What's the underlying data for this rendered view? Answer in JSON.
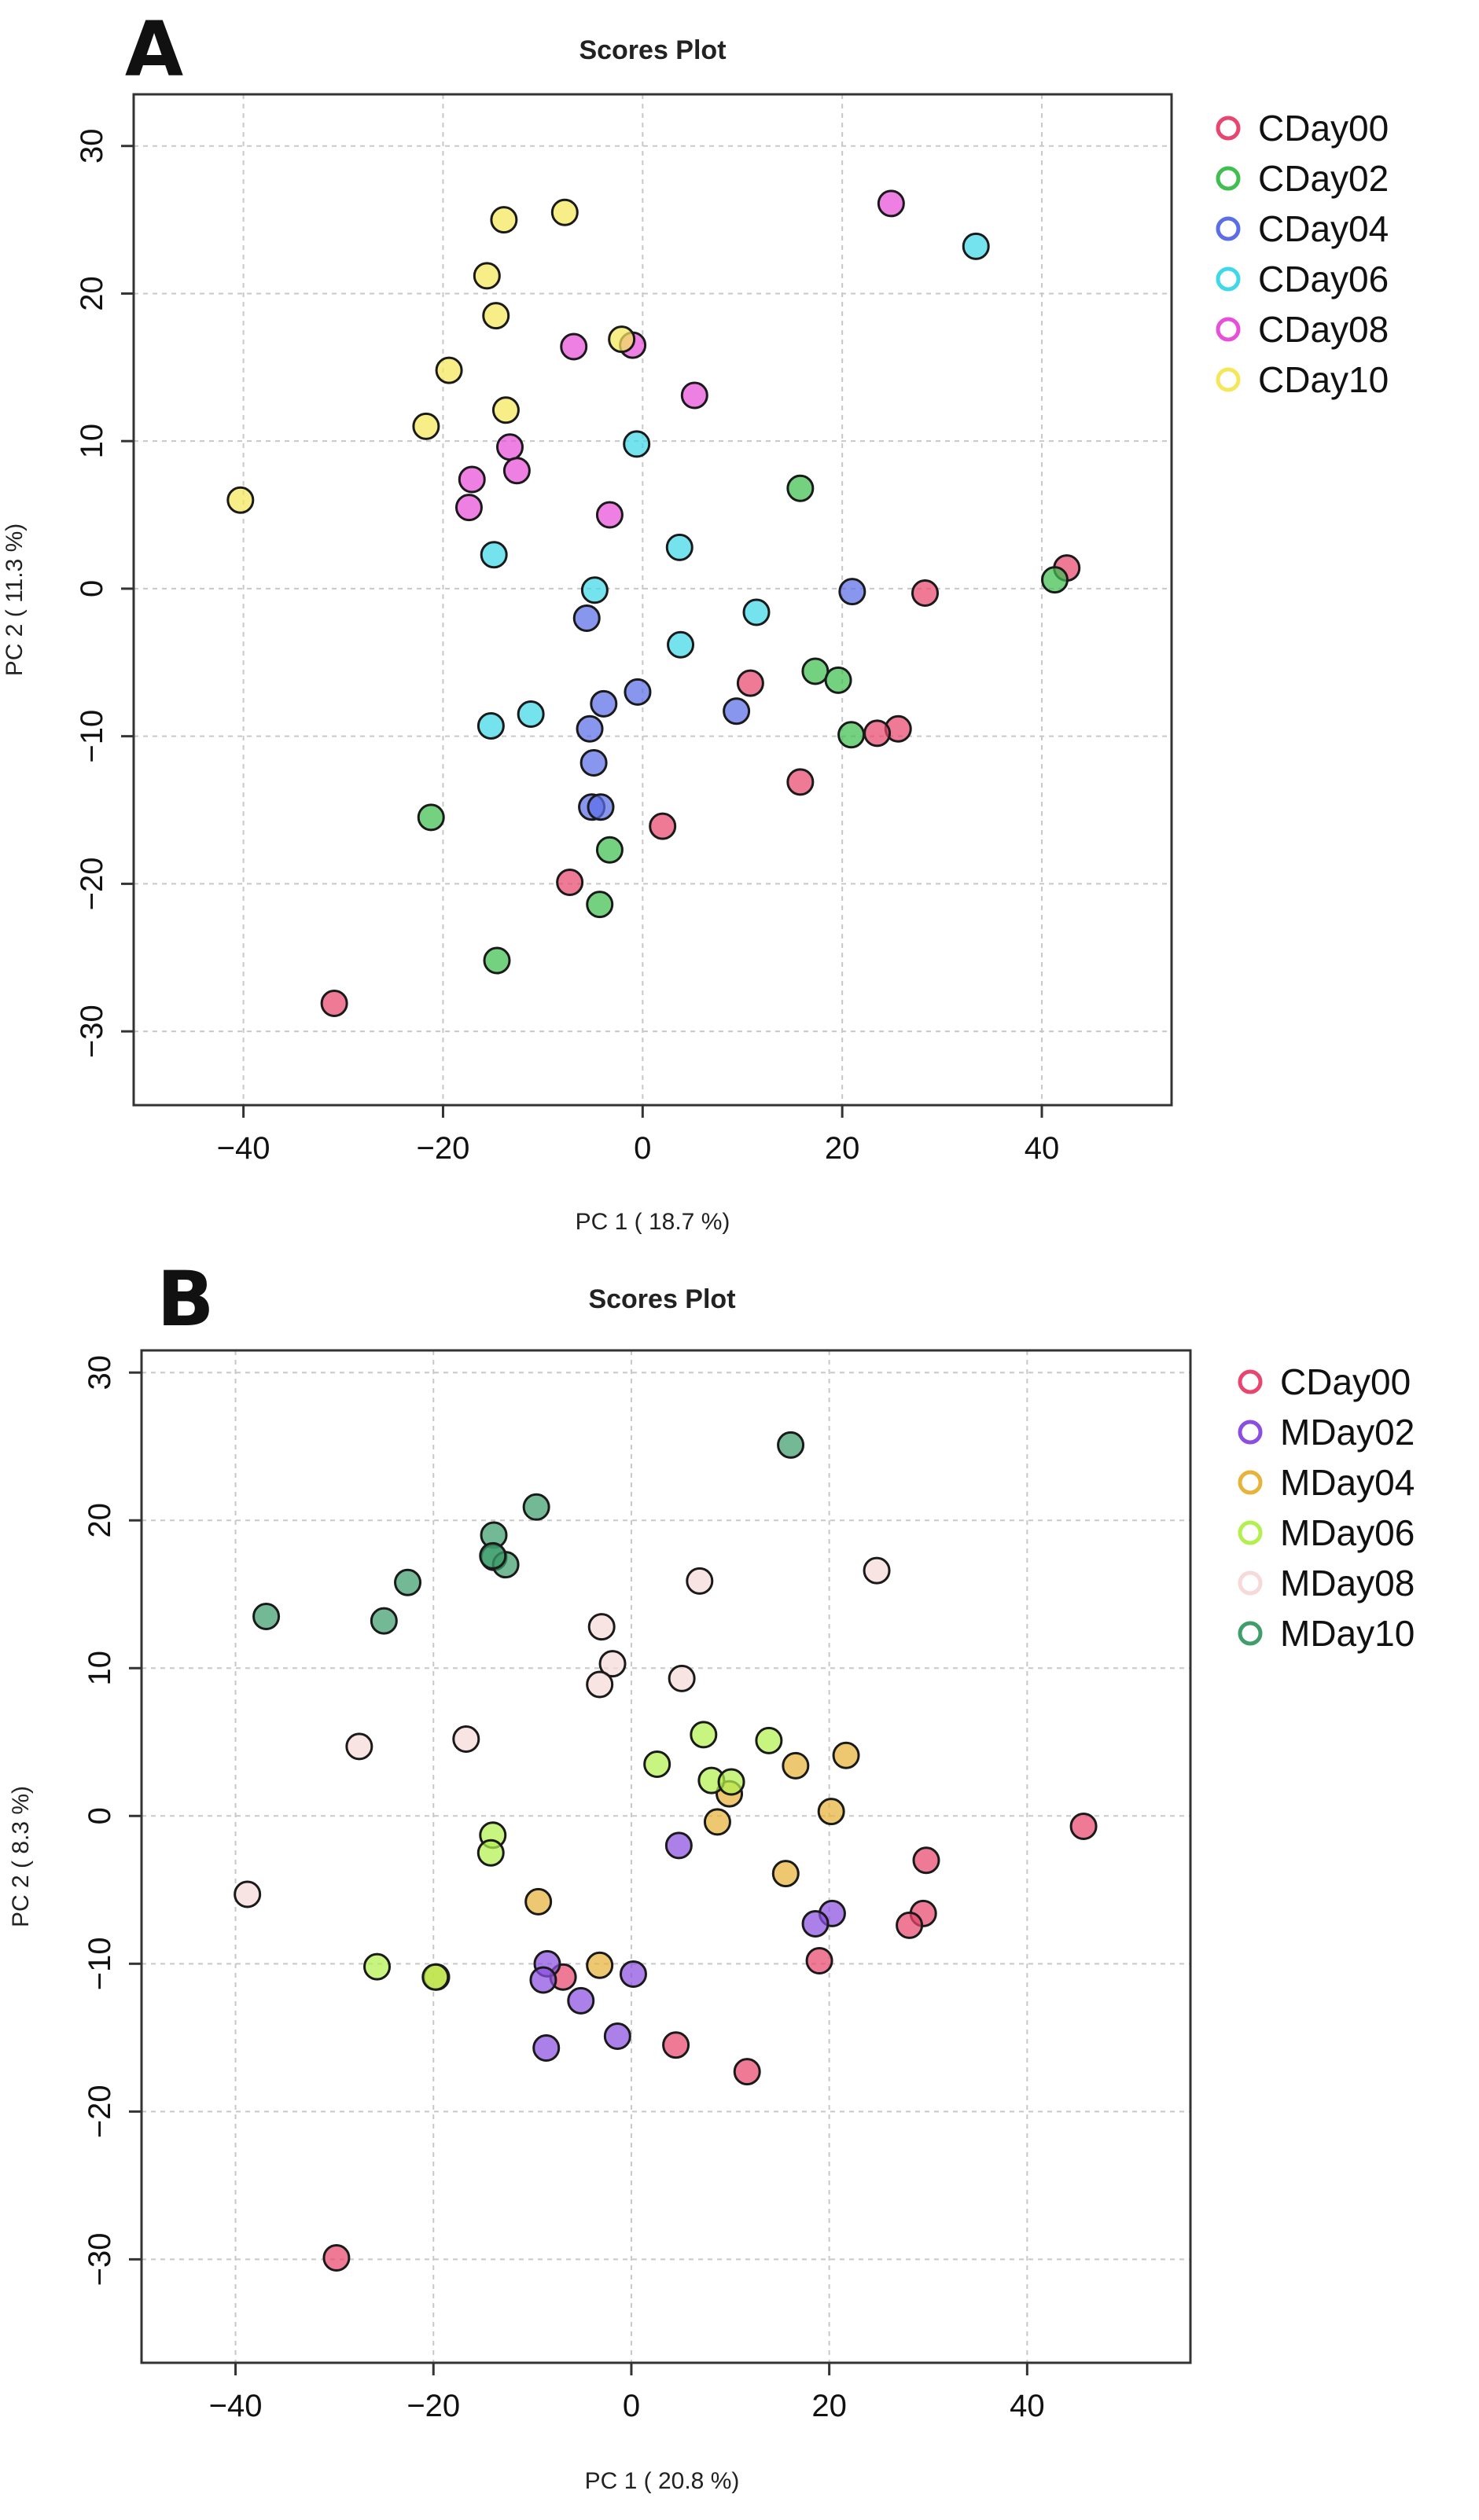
{
  "chart_data": [
    {
      "panel": "A",
      "type": "scatter",
      "title": "Scores Plot",
      "xlabel": "PC 1 ( 18.7 %)",
      "ylabel": "PC 2 ( 11.3 %)",
      "xlim": [
        -51,
        53
      ],
      "ylim": [
        -35,
        33.5
      ],
      "xticks": [
        -40,
        -20,
        0,
        20,
        40
      ],
      "yticks": [
        -30,
        -20,
        -10,
        0,
        10,
        20,
        30
      ],
      "grid": true,
      "legend_position": "right",
      "series": [
        {
          "name": "CDay00",
          "color": "#e8466e",
          "points": [
            [
              42.5,
              1.4
            ],
            [
              28.3,
              -0.3
            ],
            [
              10.8,
              -6.4
            ],
            [
              25.6,
              -9.5
            ],
            [
              23.5,
              -9.8
            ],
            [
              15.8,
              -13.1
            ],
            [
              2.0,
              -16.1
            ],
            [
              -7.3,
              -19.9
            ],
            [
              -30.9,
              -28.1
            ]
          ]
        },
        {
          "name": "CDay02",
          "color": "#3fbf4f",
          "points": [
            [
              15.8,
              6.8
            ],
            [
              41.3,
              0.6
            ],
            [
              17.3,
              -5.6
            ],
            [
              19.6,
              -6.2
            ],
            [
              20.9,
              -9.9
            ],
            [
              -21.2,
              -15.5
            ],
            [
              -3.3,
              -17.7
            ],
            [
              -4.3,
              -21.4
            ],
            [
              -14.6,
              -25.2
            ]
          ]
        },
        {
          "name": "CDay04",
          "color": "#5b6ee8",
          "points": [
            [
              21.0,
              -0.2
            ],
            [
              -5.6,
              -2.0
            ],
            [
              9.4,
              -8.3
            ],
            [
              -3.9,
              -7.8
            ],
            [
              -0.5,
              -7.0
            ],
            [
              -5.3,
              -9.5
            ],
            [
              -4.9,
              -11.8
            ],
            [
              -5.1,
              -14.8
            ],
            [
              -4.2,
              -14.8
            ]
          ]
        },
        {
          "name": "CDay06",
          "color": "#3fd8e8",
          "points": [
            [
              33.4,
              23.2
            ],
            [
              -0.6,
              9.8
            ],
            [
              -14.9,
              2.3
            ],
            [
              3.7,
              2.8
            ],
            [
              -4.8,
              -0.1
            ],
            [
              11.4,
              -1.6
            ],
            [
              3.8,
              -3.8
            ],
            [
              -11.2,
              -8.5
            ],
            [
              -15.2,
              -9.3
            ]
          ]
        },
        {
          "name": "CDay08",
          "color": "#e84fd8",
          "points": [
            [
              24.9,
              26.1
            ],
            [
              -6.9,
              16.4
            ],
            [
              -1.0,
              16.5
            ],
            [
              5.2,
              13.1
            ],
            [
              -13.3,
              9.6
            ],
            [
              -12.6,
              8.0
            ],
            [
              -17.1,
              7.4
            ],
            [
              -17.4,
              5.5
            ],
            [
              -3.3,
              5.0
            ]
          ]
        },
        {
          "name": "CDay10",
          "color": "#f4e75a",
          "points": [
            [
              -13.9,
              25.0
            ],
            [
              -7.8,
              25.5
            ],
            [
              -15.6,
              21.2
            ],
            [
              -14.7,
              18.5
            ],
            [
              -2.1,
              16.9
            ],
            [
              -19.4,
              14.8
            ],
            [
              -13.7,
              12.1
            ],
            [
              -21.7,
              11.0
            ],
            [
              -40.3,
              6.0
            ]
          ]
        }
      ]
    },
    {
      "panel": "B",
      "type": "scatter",
      "title": "Scores Plot",
      "xlabel": "PC 1 ( 20.8 %)",
      "ylabel": "PC 2 ( 8.3 %)",
      "xlim": [
        -49.5,
        56.5
      ],
      "ylim": [
        -37,
        31.5
      ],
      "xticks": [
        -40,
        -20,
        0,
        20,
        40
      ],
      "yticks": [
        -30,
        -20,
        -10,
        0,
        10,
        20,
        30
      ],
      "grid": true,
      "legend_position": "right",
      "series": [
        {
          "name": "CDay00",
          "color": "#e8466e",
          "points": [
            [
              45.7,
              -0.7
            ],
            [
              29.8,
              -3.0
            ],
            [
              29.5,
              -6.6
            ],
            [
              28.1,
              -7.4
            ],
            [
              19.0,
              -9.8
            ],
            [
              -6.9,
              -10.9
            ],
            [
              4.5,
              -15.5
            ],
            [
              11.7,
              -17.3
            ],
            [
              -29.8,
              -29.9
            ]
          ]
        },
        {
          "name": "MDay02",
          "color": "#8a4fe0",
          "points": [
            [
              4.8,
              -2.0
            ],
            [
              20.3,
              -6.6
            ],
            [
              18.6,
              -7.3
            ],
            [
              -8.5,
              -10.0
            ],
            [
              -8.9,
              -11.1
            ],
            [
              0.2,
              -10.7
            ],
            [
              -5.1,
              -12.5
            ],
            [
              -1.4,
              -14.9
            ],
            [
              -8.6,
              -15.7
            ]
          ]
        },
        {
          "name": "MDay04",
          "color": "#e8b33a",
          "points": [
            [
              21.7,
              4.1
            ],
            [
              16.6,
              3.4
            ],
            [
              9.9,
              1.5
            ],
            [
              8.7,
              -0.4
            ],
            [
              20.2,
              0.3
            ],
            [
              15.6,
              -3.9
            ],
            [
              -9.4,
              -5.8
            ],
            [
              -3.2,
              -10.1
            ],
            [
              -19.7,
              -10.9
            ]
          ]
        },
        {
          "name": "MDay06",
          "color": "#b3f04f",
          "points": [
            [
              7.3,
              5.5
            ],
            [
              2.6,
              3.5
            ],
            [
              8.1,
              2.4
            ],
            [
              13.9,
              5.1
            ],
            [
              10.1,
              2.3
            ],
            [
              -14.0,
              -1.3
            ],
            [
              -14.2,
              -2.5
            ],
            [
              -25.7,
              -10.2
            ],
            [
              -19.8,
              -10.9
            ]
          ]
        },
        {
          "name": "MDay08",
          "color": "#f6d9d9",
          "points": [
            [
              24.8,
              16.6
            ],
            [
              6.9,
              15.9
            ],
            [
              -3.0,
              12.8
            ],
            [
              -1.9,
              10.3
            ],
            [
              -3.2,
              8.9
            ],
            [
              5.1,
              9.3
            ],
            [
              -27.5,
              4.7
            ],
            [
              -16.7,
              5.2
            ],
            [
              -38.8,
              -5.3
            ]
          ]
        },
        {
          "name": "MDay10",
          "color": "#3f9e6c",
          "points": [
            [
              16.1,
              25.1
            ],
            [
              -9.6,
              20.9
            ],
            [
              -13.9,
              19.0
            ],
            [
              -13.9,
              17.5
            ],
            [
              -12.7,
              17.0
            ],
            [
              -22.6,
              15.8
            ],
            [
              -25.0,
              13.2
            ],
            [
              -36.9,
              13.5
            ],
            [
              -14.0,
              17.6
            ]
          ]
        }
      ]
    }
  ]
}
